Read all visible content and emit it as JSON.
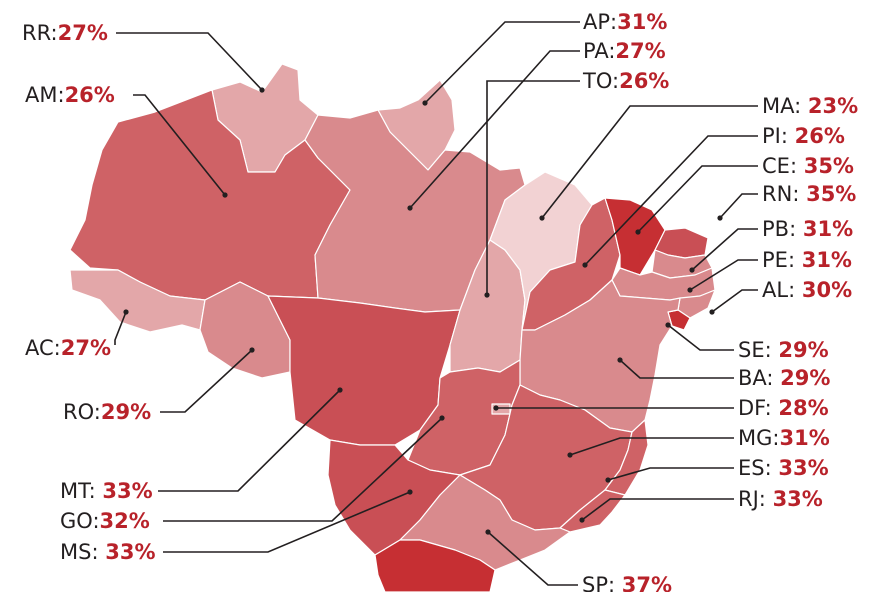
{
  "colors": {
    "value_text": "#b8222a",
    "label_text": "#231f20",
    "shade_lightest": "#f2d2d3",
    "shade_light": "#e3a7a9",
    "shade_medium": "#d98a8d",
    "shade_dark": "#cf6266",
    "shade_darker": "#c94f55",
    "shade_darkest": "#c62f33"
  },
  "states": [
    {
      "code": "RR",
      "sep": ":",
      "value": "27%"
    },
    {
      "code": "AP",
      "sep": ":",
      "value": "31%"
    },
    {
      "code": "PA",
      "sep": ":",
      "value": "27%"
    },
    {
      "code": "TO",
      "sep": ":",
      "value": "26%"
    },
    {
      "code": "AM",
      "sep": ":",
      "value": "26%"
    },
    {
      "code": "MA",
      "sep": ": ",
      "value": "23%"
    },
    {
      "code": "PI",
      "sep": ": ",
      "value": "26%"
    },
    {
      "code": "CE",
      "sep": ": ",
      "value": "35%"
    },
    {
      "code": "RN",
      "sep": ": ",
      "value": "35%"
    },
    {
      "code": "PB",
      "sep": ": ",
      "value": "31%"
    },
    {
      "code": "PE",
      "sep": ": ",
      "value": "31%"
    },
    {
      "code": "AL",
      "sep": ": ",
      "value": "30%"
    },
    {
      "code": "AC",
      "sep": ":",
      "value": "27%"
    },
    {
      "code": "SE",
      "sep": ": ",
      "value": "29%"
    },
    {
      "code": "RO",
      "sep": ":",
      "value": "29%"
    },
    {
      "code": "BA",
      "sep": ": ",
      "value": "29%"
    },
    {
      "code": "DF",
      "sep": ": ",
      "value": "28%"
    },
    {
      "code": "MG",
      "sep": ":",
      "value": "31%"
    },
    {
      "code": "MT",
      "sep": ": ",
      "value": "33%"
    },
    {
      "code": "ES",
      "sep": ": ",
      "value": "33%"
    },
    {
      "code": "GO",
      "sep": ":",
      "value": "32%"
    },
    {
      "code": "RJ",
      "sep": ": ",
      "value": "33%"
    },
    {
      "code": "MS",
      "sep": ": ",
      "value": "33%"
    },
    {
      "code": "SP",
      "sep": ": ",
      "value": "37%"
    }
  ]
}
